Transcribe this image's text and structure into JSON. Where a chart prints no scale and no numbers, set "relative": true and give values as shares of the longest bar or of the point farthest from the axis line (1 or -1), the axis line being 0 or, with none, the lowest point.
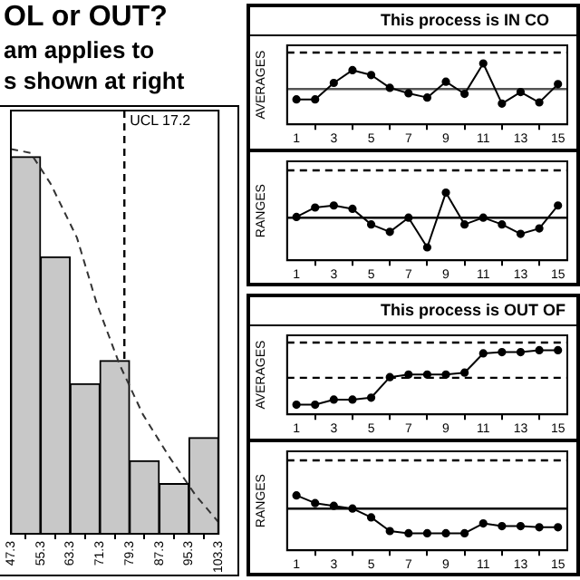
{
  "chart_data": [
    {
      "type": "histogram",
      "title": "OL or OUT?",
      "subtitle": "am applies to\ns shown at right",
      "bins": [
        47.3,
        55.3,
        63.3,
        71.3,
        79.3,
        87.3,
        95.3,
        103.3
      ],
      "values": [
        0.98,
        0.72,
        0.39,
        0.45,
        0.19,
        0.13,
        0.25
      ],
      "color": "#c8c8c8",
      "relative": true,
      "xlim": [
        47.3,
        103.3
      ],
      "xticks": [
        47.3,
        55.3,
        63.3,
        71.3,
        79.3,
        87.3,
        95.3,
        103.3
      ],
      "tick_labels": "x",
      "series": [
        {
          "type": "line",
          "x": [
            47.3,
            52.6,
            58.0,
            65.1,
            70.4,
            76.6,
            82.9,
            90.0,
            97.1,
            103.3
          ],
          "values": [
            1.0,
            0.99,
            0.91,
            0.77,
            0.6,
            0.44,
            0.31,
            0.2,
            0.1,
            0.03
          ],
          "color": "#333333",
          "line_style": "dashed",
          "marker": "none"
        }
      ],
      "ref_lines": [
        {
          "axis": "x",
          "value": 77.9,
          "label": "UCL 17.2",
          "line_style": "dashed",
          "color": "#000000"
        }
      ]
    },
    {
      "type": "line",
      "title": "This process is IN CO",
      "ylabel": "AVERAGES",
      "x": [
        1,
        2,
        3,
        4,
        5,
        6,
        7,
        8,
        9,
        10,
        11,
        12,
        13,
        14,
        15
      ],
      "values": [
        0.41,
        0.41,
        0.68,
        0.89,
        0.81,
        0.6,
        0.51,
        0.44,
        0.7,
        0.5,
        1.0,
        0.34,
        0.53,
        0.36,
        0.66
      ],
      "color": "#000000",
      "marker": "circle",
      "relative": true,
      "xlim": [
        0.5,
        15.5
      ],
      "xticks": [
        1,
        3,
        5,
        7,
        9,
        11,
        13,
        15
      ],
      "tick_labels": "x",
      "ref_lines": [
        {
          "axis": "y",
          "value": 1.18,
          "line_style": "dashed",
          "color": "#000000"
        },
        {
          "axis": "y",
          "value": 0.58,
          "line_style": "solid",
          "color": "#555555"
        }
      ]
    },
    {
      "type": "line",
      "ylabel": "RANGES",
      "x": [
        1,
        2,
        3,
        4,
        5,
        6,
        7,
        8,
        9,
        10,
        11,
        12,
        13,
        14,
        15
      ],
      "values": [
        0.64,
        0.78,
        0.81,
        0.76,
        0.53,
        0.42,
        0.63,
        0.19,
        1.0,
        0.53,
        0.63,
        0.53,
        0.39,
        0.47,
        0.81
      ],
      "color": "#000000",
      "marker": "circle",
      "relative": true,
      "xlim": [
        0.5,
        15.5
      ],
      "xticks": [
        1,
        3,
        5,
        7,
        9,
        11,
        13,
        15
      ],
      "tick_labels": "x",
      "ref_lines": [
        {
          "axis": "y",
          "value": 1.33,
          "line_style": "dashed",
          "color": "#000000"
        },
        {
          "axis": "y",
          "value": 0.63,
          "line_style": "solid",
          "color": "#000000"
        }
      ]
    },
    {
      "type": "line",
      "title": "This process is OUT OF",
      "ylabel": "AVERAGES",
      "x": [
        1,
        2,
        3,
        4,
        5,
        6,
        7,
        8,
        9,
        10,
        11,
        12,
        13,
        14,
        15
      ],
      "values": [
        0.15,
        0.15,
        0.23,
        0.23,
        0.26,
        0.58,
        0.62,
        0.62,
        0.62,
        0.65,
        0.95,
        0.97,
        0.97,
        1.0,
        1.0
      ],
      "color": "#000000",
      "marker": "circle",
      "relative": true,
      "xlim": [
        0.5,
        15.5
      ],
      "xticks": [
        1,
        3,
        5,
        7,
        9,
        11,
        13,
        15
      ],
      "tick_labels": "x",
      "ref_lines": [
        {
          "axis": "y",
          "value": 1.12,
          "line_style": "dashed",
          "color": "#000000"
        },
        {
          "axis": "y",
          "value": 0.57,
          "line_style": "dashed",
          "color": "#000000"
        }
      ]
    },
    {
      "type": "line",
      "ylabel": "RANGES",
      "x": [
        1,
        2,
        3,
        4,
        5,
        6,
        7,
        8,
        9,
        10,
        11,
        12,
        13,
        14,
        15
      ],
      "values": [
        1.0,
        0.86,
        0.81,
        0.76,
        0.6,
        0.35,
        0.31,
        0.31,
        0.31,
        0.31,
        0.49,
        0.44,
        0.44,
        0.42,
        0.42
      ],
      "color": "#000000",
      "marker": "circle",
      "relative": true,
      "xlim": [
        0.5,
        15.5
      ],
      "xticks": [
        1,
        3,
        5,
        7,
        9,
        11,
        13,
        15
      ],
      "tick_labels": "x",
      "ref_lines": [
        {
          "axis": "y",
          "value": 1.64,
          "line_style": "dashed",
          "color": "#000000"
        },
        {
          "axis": "y",
          "value": 0.76,
          "line_style": "solid",
          "color": "#000000"
        }
      ]
    }
  ]
}
